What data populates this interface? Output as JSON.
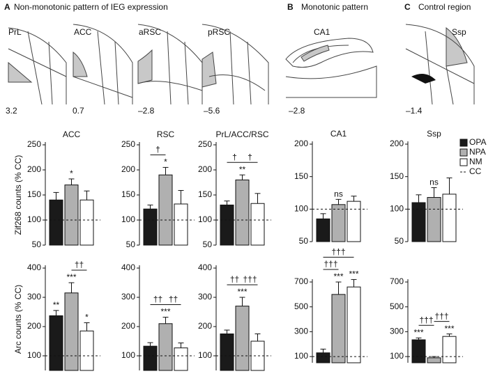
{
  "panels": [
    {
      "letter": "A",
      "title": "Non-monotonic pattern of IEG expression",
      "sections": [
        {
          "label": "PrL",
          "coord": "3.2"
        },
        {
          "label": "ACC",
          "coord": "0.7"
        },
        {
          "label": "aRSC",
          "coord": "–2.8"
        },
        {
          "label": "pRSC",
          "coord": "–5.6"
        }
      ]
    },
    {
      "letter": "B",
      "title": "Monotonic pattern",
      "sections": [
        {
          "label": "CA1",
          "coord": "–2.8"
        }
      ]
    },
    {
      "letter": "C",
      "title": "Control region",
      "sections": [
        {
          "label": "Ssp",
          "coord": "–1.4"
        }
      ]
    }
  ],
  "legend": [
    {
      "name": "OPA",
      "color": "#1a1a1a"
    },
    {
      "name": "NPA",
      "color": "#b0b0b0"
    },
    {
      "name": "NM",
      "color": "#ffffff"
    },
    {
      "name": "CC",
      "style": "dashed"
    }
  ],
  "chart_data": [
    {
      "type": "bar",
      "title": "ACC",
      "ylabel": "Zif268 counts (% CC)",
      "values": [
        140,
        170,
        140
      ],
      "errors": [
        15,
        12,
        18
      ],
      "colors": [
        "#1a1a1a",
        "#b0b0b0",
        "#ffffff"
      ],
      "ylim": [
        50,
        250
      ],
      "yticks": [
        50,
        100,
        150,
        200,
        250
      ],
      "reference": 100,
      "bar_labels": [
        null,
        "*",
        null
      ],
      "brackets": []
    },
    {
      "type": "bar",
      "title": "RSC",
      "values": [
        122,
        190,
        132
      ],
      "errors": [
        8,
        15,
        27
      ],
      "colors": [
        "#1a1a1a",
        "#b0b0b0",
        "#ffffff"
      ],
      "ylim": [
        50,
        250
      ],
      "yticks": [
        50,
        100,
        150,
        200,
        250
      ],
      "reference": 100,
      "bar_labels": [
        null,
        "*",
        null
      ],
      "brackets": [
        {
          "text": "†",
          "from": 0,
          "to": 1
        }
      ]
    },
    {
      "type": "bar",
      "title": "PrL/ACC/RSC",
      "values": [
        130,
        180,
        133
      ],
      "errors": [
        8,
        10,
        20
      ],
      "colors": [
        "#1a1a1a",
        "#b0b0b0",
        "#ffffff"
      ],
      "ylim": [
        50,
        250
      ],
      "yticks": [
        50,
        100,
        150,
        200,
        250
      ],
      "reference": 100,
      "bar_labels": [
        null,
        "**",
        null
      ],
      "brackets": [
        {
          "text": "†",
          "from": 0,
          "to": 1
        },
        {
          "text": "†",
          "from": 1,
          "to": 2
        }
      ]
    },
    {
      "type": "bar",
      "title": "CA1",
      "values": [
        85,
        107,
        112
      ],
      "errors": [
        8,
        8,
        8
      ],
      "colors": [
        "#1a1a1a",
        "#b0b0b0",
        "#ffffff"
      ],
      "ylim": [
        50,
        200
      ],
      "yticks": [
        50,
        100,
        150,
        200
      ],
      "reference": 100,
      "bar_labels": [
        null,
        "ns",
        null
      ],
      "brackets": []
    },
    {
      "type": "bar",
      "title": "Ssp",
      "values": [
        110,
        118,
        123
      ],
      "errors": [
        12,
        15,
        25
      ],
      "colors": [
        "#1a1a1a",
        "#b0b0b0",
        "#ffffff"
      ],
      "ylim": [
        50,
        200
      ],
      "yticks": [
        50,
        100,
        150,
        200
      ],
      "reference": 100,
      "bar_labels": [
        null,
        "ns",
        null
      ],
      "brackets": []
    },
    {
      "type": "bar",
      "ylabel": "Arc counts (% CC)",
      "values": [
        237,
        315,
        185
      ],
      "errors": [
        18,
        35,
        28
      ],
      "colors": [
        "#1a1a1a",
        "#b0b0b0",
        "#ffffff"
      ],
      "ylim": [
        50,
        400
      ],
      "yticks": [
        100,
        200,
        300,
        400
      ],
      "reference": 100,
      "bar_labels": [
        "**",
        "***",
        "*"
      ],
      "brackets": [
        {
          "text": "††",
          "from": 1,
          "to": 2
        }
      ]
    },
    {
      "type": "bar",
      "values": [
        133,
        210,
        127
      ],
      "errors": [
        12,
        22,
        17
      ],
      "colors": [
        "#1a1a1a",
        "#b0b0b0",
        "#ffffff"
      ],
      "ylim": [
        50,
        400
      ],
      "yticks": [
        100,
        200,
        300,
        400
      ],
      "reference": 100,
      "bar_labels": [
        null,
        "***",
        null
      ],
      "brackets": [
        {
          "text": "††",
          "from": 0,
          "to": 1
        },
        {
          "text": "††",
          "from": 1,
          "to": 2
        }
      ]
    },
    {
      "type": "bar",
      "values": [
        175,
        270,
        150
      ],
      "errors": [
        13,
        30,
        25
      ],
      "colors": [
        "#1a1a1a",
        "#b0b0b0",
        "#ffffff"
      ],
      "ylim": [
        50,
        400
      ],
      "yticks": [
        100,
        200,
        300,
        400
      ],
      "reference": 100,
      "bar_labels": [
        null,
        "***",
        null
      ],
      "brackets": [
        {
          "text": "††",
          "from": 0,
          "to": 1
        },
        {
          "text": "†††",
          "from": 1,
          "to": 2
        }
      ]
    },
    {
      "type": "bar",
      "values": [
        130,
        600,
        660
      ],
      "errors": [
        30,
        100,
        60
      ],
      "colors": [
        "#1a1a1a",
        "#b0b0b0",
        "#ffffff"
      ],
      "ylim": [
        50,
        700
      ],
      "yticks": [
        100,
        300,
        500,
        700
      ],
      "reference": 100,
      "bar_labels": [
        null,
        "***",
        "***"
      ],
      "brackets": [
        {
          "text": "†††",
          "from": 0,
          "to": 1
        },
        {
          "text": "†††",
          "from": 0,
          "to": 2
        }
      ]
    },
    {
      "type": "bar",
      "values": [
        235,
        90,
        262
      ],
      "errors": [
        15,
        10,
        20
      ],
      "colors": [
        "#1a1a1a",
        "#b0b0b0",
        "#ffffff"
      ],
      "ylim": [
        50,
        700
      ],
      "yticks": [
        100,
        300,
        500,
        700
      ],
      "reference": 100,
      "bar_labels": [
        "***",
        null,
        "***"
      ],
      "brackets": [
        {
          "text": "†††",
          "from": 0,
          "to": 1
        },
        {
          "text": "†††",
          "from": 1,
          "to": 2
        }
      ]
    }
  ]
}
